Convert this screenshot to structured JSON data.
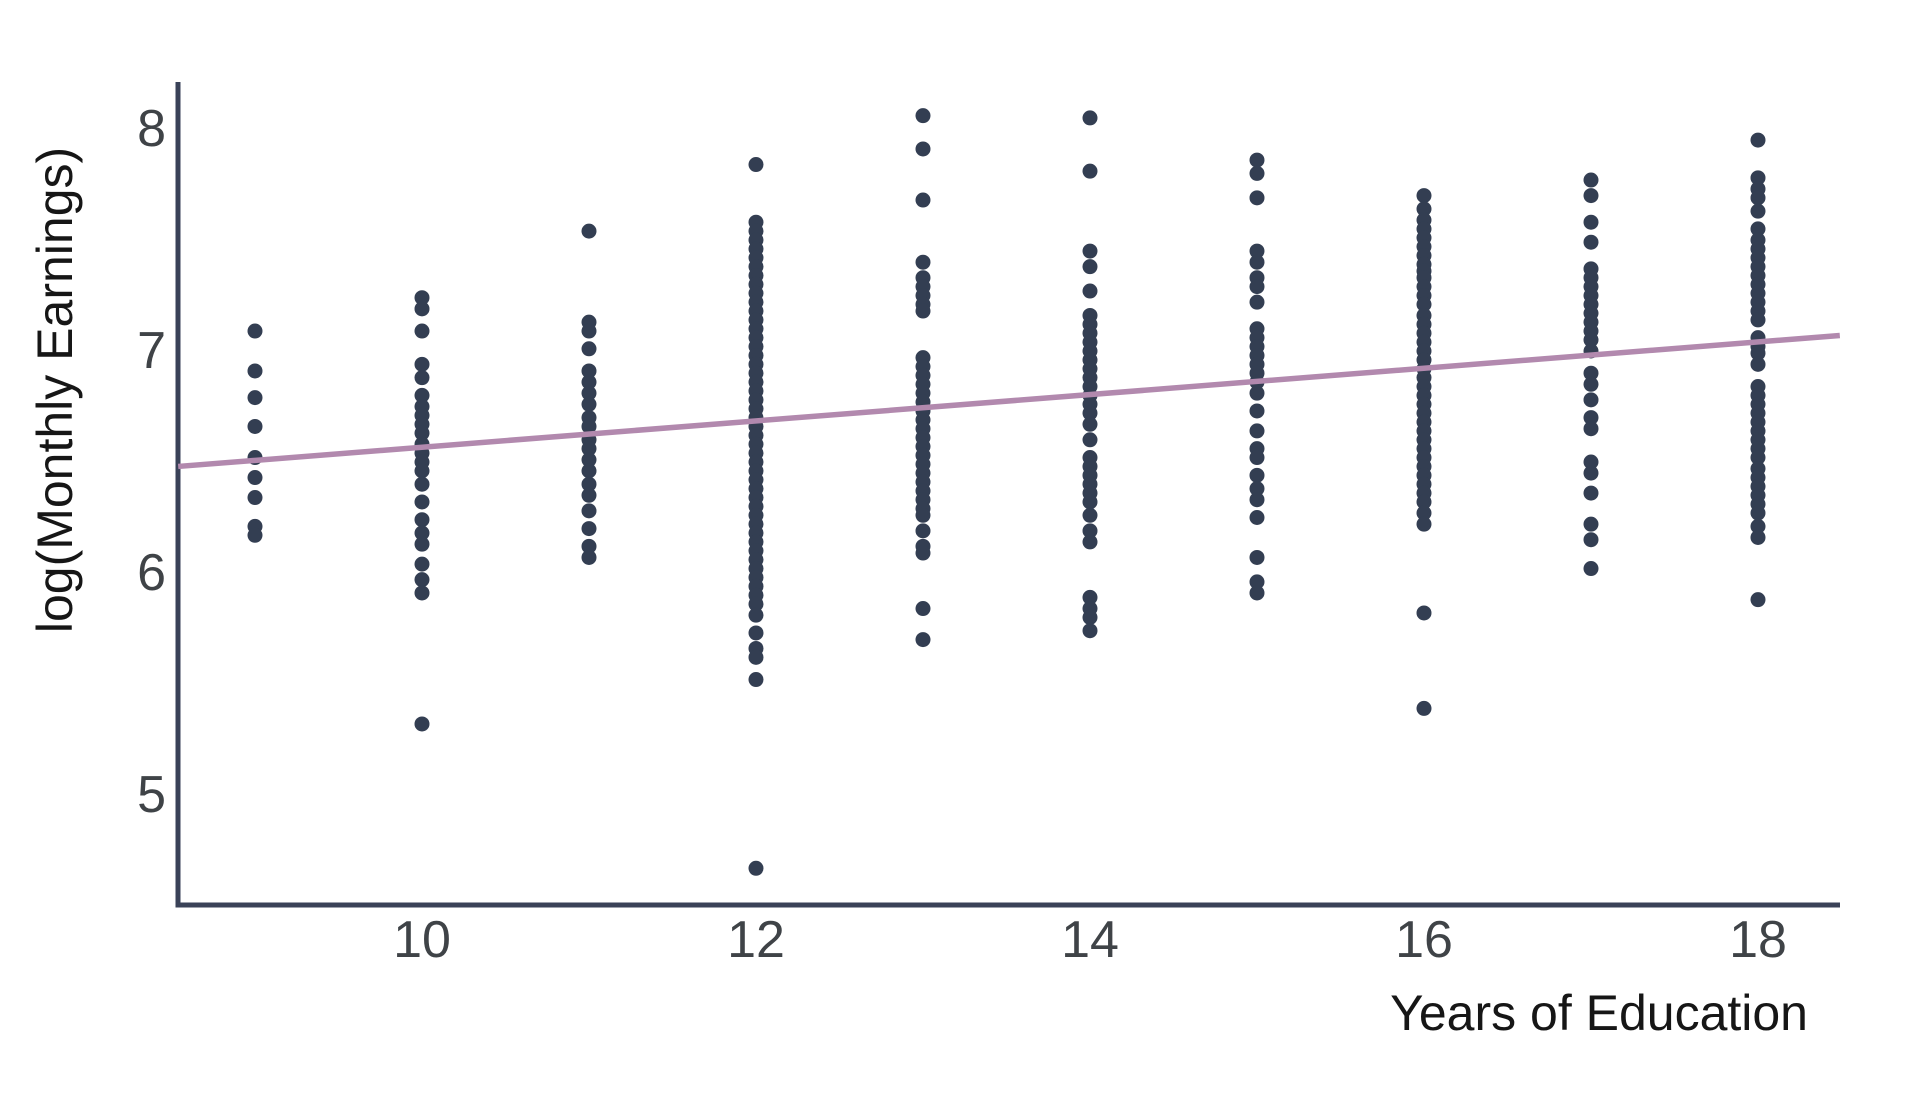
{
  "figure": {
    "colors": {
      "background": "#ffffff",
      "point": "#333e52",
      "regression_line": "#b289ae",
      "axis": "#3a4258",
      "tick_text": "#3f4347",
      "title_text": "#161616"
    }
  },
  "chart_data": {
    "type": "scatter",
    "title": "",
    "xlabel": "Years of Education",
    "ylabel": "log(Monthly Earnings)",
    "xlim": [
      8.54,
      18.49
    ],
    "ylim": [
      4.49,
      8.21
    ],
    "x_ticks": [
      10,
      12,
      14,
      16,
      18
    ],
    "y_ticks": [
      5,
      6,
      7,
      8
    ],
    "grid": false,
    "legend": false,
    "regression_line": {
      "x1": 8.54,
      "y1": 6.48,
      "x2": 18.49,
      "y2": 7.07
    },
    "series": [
      {
        "x": 9,
        "values": [
          7.09,
          6.91,
          6.79,
          6.66,
          6.52,
          6.43,
          6.34,
          6.21,
          6.17
        ]
      },
      {
        "x": 10,
        "values": [
          7.24,
          7.19,
          7.09,
          6.94,
          6.88,
          6.8,
          6.75,
          6.71,
          6.67,
          6.63,
          6.58,
          6.54,
          6.5,
          6.46,
          6.4,
          6.32,
          6.24,
          6.18,
          6.13,
          6.04,
          5.97,
          5.91,
          5.32
        ]
      },
      {
        "x": 11,
        "values": [
          7.54,
          7.13,
          7.09,
          7.01,
          6.91,
          6.86,
          6.81,
          6.76,
          6.7,
          6.66,
          6.6,
          6.56,
          6.51,
          6.46,
          6.4,
          6.35,
          6.28,
          6.2,
          6.12,
          6.07
        ]
      },
      {
        "x": 12,
        "values": [
          7.84,
          7.58,
          7.54,
          7.5,
          7.46,
          7.42,
          7.38,
          7.34,
          7.3,
          7.26,
          7.22,
          7.18,
          7.14,
          7.1,
          7.06,
          7.02,
          6.98,
          6.94,
          6.9,
          6.86,
          6.82,
          6.78,
          6.74,
          6.7,
          6.66,
          6.62,
          6.58,
          6.54,
          6.5,
          6.46,
          6.42,
          6.38,
          6.34,
          6.3,
          6.26,
          6.22,
          6.18,
          6.14,
          6.1,
          6.06,
          6.02,
          5.98,
          5.94,
          5.9,
          5.86,
          5.81,
          5.73,
          5.66,
          5.62,
          5.52,
          4.67
        ]
      },
      {
        "x": 13,
        "values": [
          8.06,
          7.91,
          7.68,
          7.4,
          7.33,
          7.29,
          7.25,
          7.21,
          7.18,
          6.97,
          6.93,
          6.89,
          6.85,
          6.81,
          6.77,
          6.73,
          6.69,
          6.65,
          6.61,
          6.57,
          6.53,
          6.49,
          6.45,
          6.41,
          6.37,
          6.33,
          6.29,
          6.26,
          6.19,
          6.12,
          6.09,
          5.84,
          5.7
        ]
      },
      {
        "x": 14,
        "values": [
          8.05,
          7.81,
          7.45,
          7.38,
          7.27,
          7.16,
          7.12,
          7.08,
          7.04,
          7.0,
          6.96,
          6.92,
          6.88,
          6.84,
          6.8,
          6.76,
          6.72,
          6.67,
          6.6,
          6.52,
          6.48,
          6.44,
          6.4,
          6.36,
          6.32,
          6.26,
          6.19,
          6.14,
          5.89,
          5.84,
          5.8,
          5.74
        ]
      },
      {
        "x": 15,
        "values": [
          7.86,
          7.8,
          7.69,
          7.45,
          7.4,
          7.33,
          7.29,
          7.22,
          7.1,
          7.06,
          7.02,
          6.98,
          6.94,
          6.9,
          6.86,
          6.81,
          6.73,
          6.64,
          6.56,
          6.52,
          6.44,
          6.38,
          6.33,
          6.25,
          6.07,
          5.96,
          5.91
        ]
      },
      {
        "x": 16,
        "values": [
          7.7,
          7.64,
          7.59,
          7.55,
          7.51,
          7.47,
          7.43,
          7.39,
          7.36,
          7.33,
          7.29,
          7.25,
          7.21,
          7.16,
          7.12,
          7.08,
          7.04,
          7.0,
          6.96,
          6.92,
          6.88,
          6.84,
          6.8,
          6.76,
          6.72,
          6.68,
          6.64,
          6.6,
          6.56,
          6.52,
          6.48,
          6.44,
          6.4,
          6.36,
          6.32,
          6.27,
          6.22,
          5.82,
          5.39
        ]
      },
      {
        "x": 17,
        "values": [
          7.77,
          7.7,
          7.58,
          7.49,
          7.37,
          7.33,
          7.29,
          7.25,
          7.21,
          7.17,
          7.13,
          7.09,
          7.05,
          7.0,
          6.9,
          6.85,
          6.78,
          6.7,
          6.65,
          6.5,
          6.45,
          6.36,
          6.22,
          6.15,
          6.02
        ]
      },
      {
        "x": 18,
        "values": [
          7.95,
          7.78,
          7.73,
          7.69,
          7.63,
          7.55,
          7.5,
          7.46,
          7.42,
          7.38,
          7.34,
          7.3,
          7.26,
          7.22,
          7.18,
          7.14,
          7.06,
          7.02,
          6.99,
          6.94,
          6.84,
          6.8,
          6.76,
          6.72,
          6.68,
          6.64,
          6.6,
          6.56,
          6.52,
          6.47,
          6.43,
          6.39,
          6.35,
          6.31,
          6.27,
          6.21,
          6.16,
          5.88
        ]
      }
    ]
  }
}
